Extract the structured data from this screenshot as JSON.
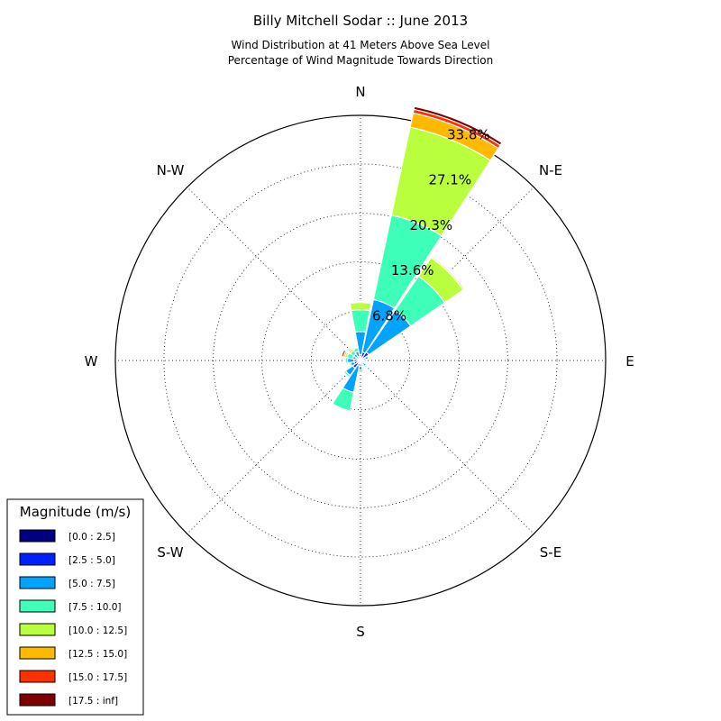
{
  "chart_data": {
    "type": "windrose",
    "title": "Billy Mitchell Sodar :: June 2013",
    "subtitle": [
      "Wind Distribution at 41 Meters Above Sea Level",
      "Percentage of Wind Magnitude Towards Direction"
    ],
    "directions": [
      "N",
      "N-E",
      "E",
      "S-E",
      "S",
      "S-W",
      "W",
      "N-W"
    ],
    "radial_unit": "%",
    "radial_ticks": [
      "6.8%",
      "13.6%",
      "20.3%",
      "27.1%",
      "33.8%"
    ],
    "radial_tick_values": [
      6.8,
      13.6,
      20.3,
      27.1,
      33.8
    ],
    "rmax": 33.8,
    "legend": {
      "title": "Magnitude (m/s)",
      "placement": "bottom-left",
      "bins": [
        "[0.0 : 2.5]",
        "[2.5 : 5.0]",
        "[5.0 : 7.5]",
        "[7.5 : 10.0]",
        "[10.0 : 12.5]",
        "[12.5 : 15.0]",
        "[15.0 : 17.5]",
        "[17.5 : inf]"
      ],
      "colors": [
        "#000080",
        "#0020ff",
        "#00a4ff",
        "#3dffb9",
        "#b9ff3d",
        "#ffb900",
        "#ff3000",
        "#800000"
      ]
    },
    "sectors": [
      {
        "direction_deg": 0,
        "values": [
          0.2,
          0.6,
          3.2,
          3.0,
          1.0,
          0.0,
          0.0,
          0.0
        ]
      },
      {
        "direction_deg": 22.5,
        "values": [
          0.4,
          0.8,
          7.4,
          11.9,
          12.4,
          2.0,
          0.5,
          0.4
        ]
      },
      {
        "direction_deg": 45,
        "values": [
          0.4,
          1.0,
          7.0,
          5.7,
          3.1,
          0.2,
          0.1,
          0.0
        ]
      },
      {
        "direction_deg": 67.5,
        "values": [
          0.3,
          0.4,
          0.4,
          0.0,
          0.0,
          0.0,
          0.0,
          0.0
        ]
      },
      {
        "direction_deg": 90,
        "values": [
          0.2,
          0.3,
          0.3,
          0.1,
          0.0,
          0.0,
          0.0,
          0.0
        ]
      },
      {
        "direction_deg": 112.5,
        "values": [
          0.2,
          0.2,
          0.2,
          0.2,
          0.0,
          0.0,
          0.0,
          0.0
        ]
      },
      {
        "direction_deg": 135,
        "values": [
          0.2,
          0.3,
          0.5,
          0.2,
          0.0,
          0.0,
          0.0,
          0.0
        ]
      },
      {
        "direction_deg": 157.5,
        "values": [
          0.2,
          0.2,
          0.2,
          0.1,
          0.0,
          0.0,
          0.0,
          0.0
        ]
      },
      {
        "direction_deg": 180,
        "values": [
          0.3,
          0.5,
          0.5,
          0.3,
          0.0,
          0.0,
          0.0,
          0.0
        ]
      },
      {
        "direction_deg": 202.5,
        "values": [
          0.3,
          0.5,
          3.7,
          2.6,
          0.0,
          0.0,
          0.0,
          0.0
        ]
      },
      {
        "direction_deg": 225,
        "values": [
          0.3,
          1.0,
          1.2,
          0.3,
          0.0,
          0.0,
          0.0,
          0.0
        ]
      },
      {
        "direction_deg": 247.5,
        "values": [
          0.3,
          0.6,
          0.5,
          0.2,
          0.0,
          0.0,
          0.0,
          0.0
        ]
      },
      {
        "direction_deg": 270,
        "values": [
          0.3,
          0.6,
          0.9,
          0.3,
          0.0,
          0.0,
          0.0,
          0.0
        ]
      },
      {
        "direction_deg": 292.5,
        "values": [
          0.3,
          0.4,
          0.4,
          0.8,
          0.3,
          0.2,
          0.3,
          0.0
        ]
      },
      {
        "direction_deg": 315,
        "values": [
          0.3,
          0.4,
          0.4,
          0.6,
          0.3,
          0.0,
          0.0,
          0.0
        ]
      },
      {
        "direction_deg": 337.5,
        "values": [
          0.3,
          0.3,
          0.7,
          0.5,
          0.0,
          0.0,
          0.0,
          0.0
        ]
      }
    ]
  }
}
